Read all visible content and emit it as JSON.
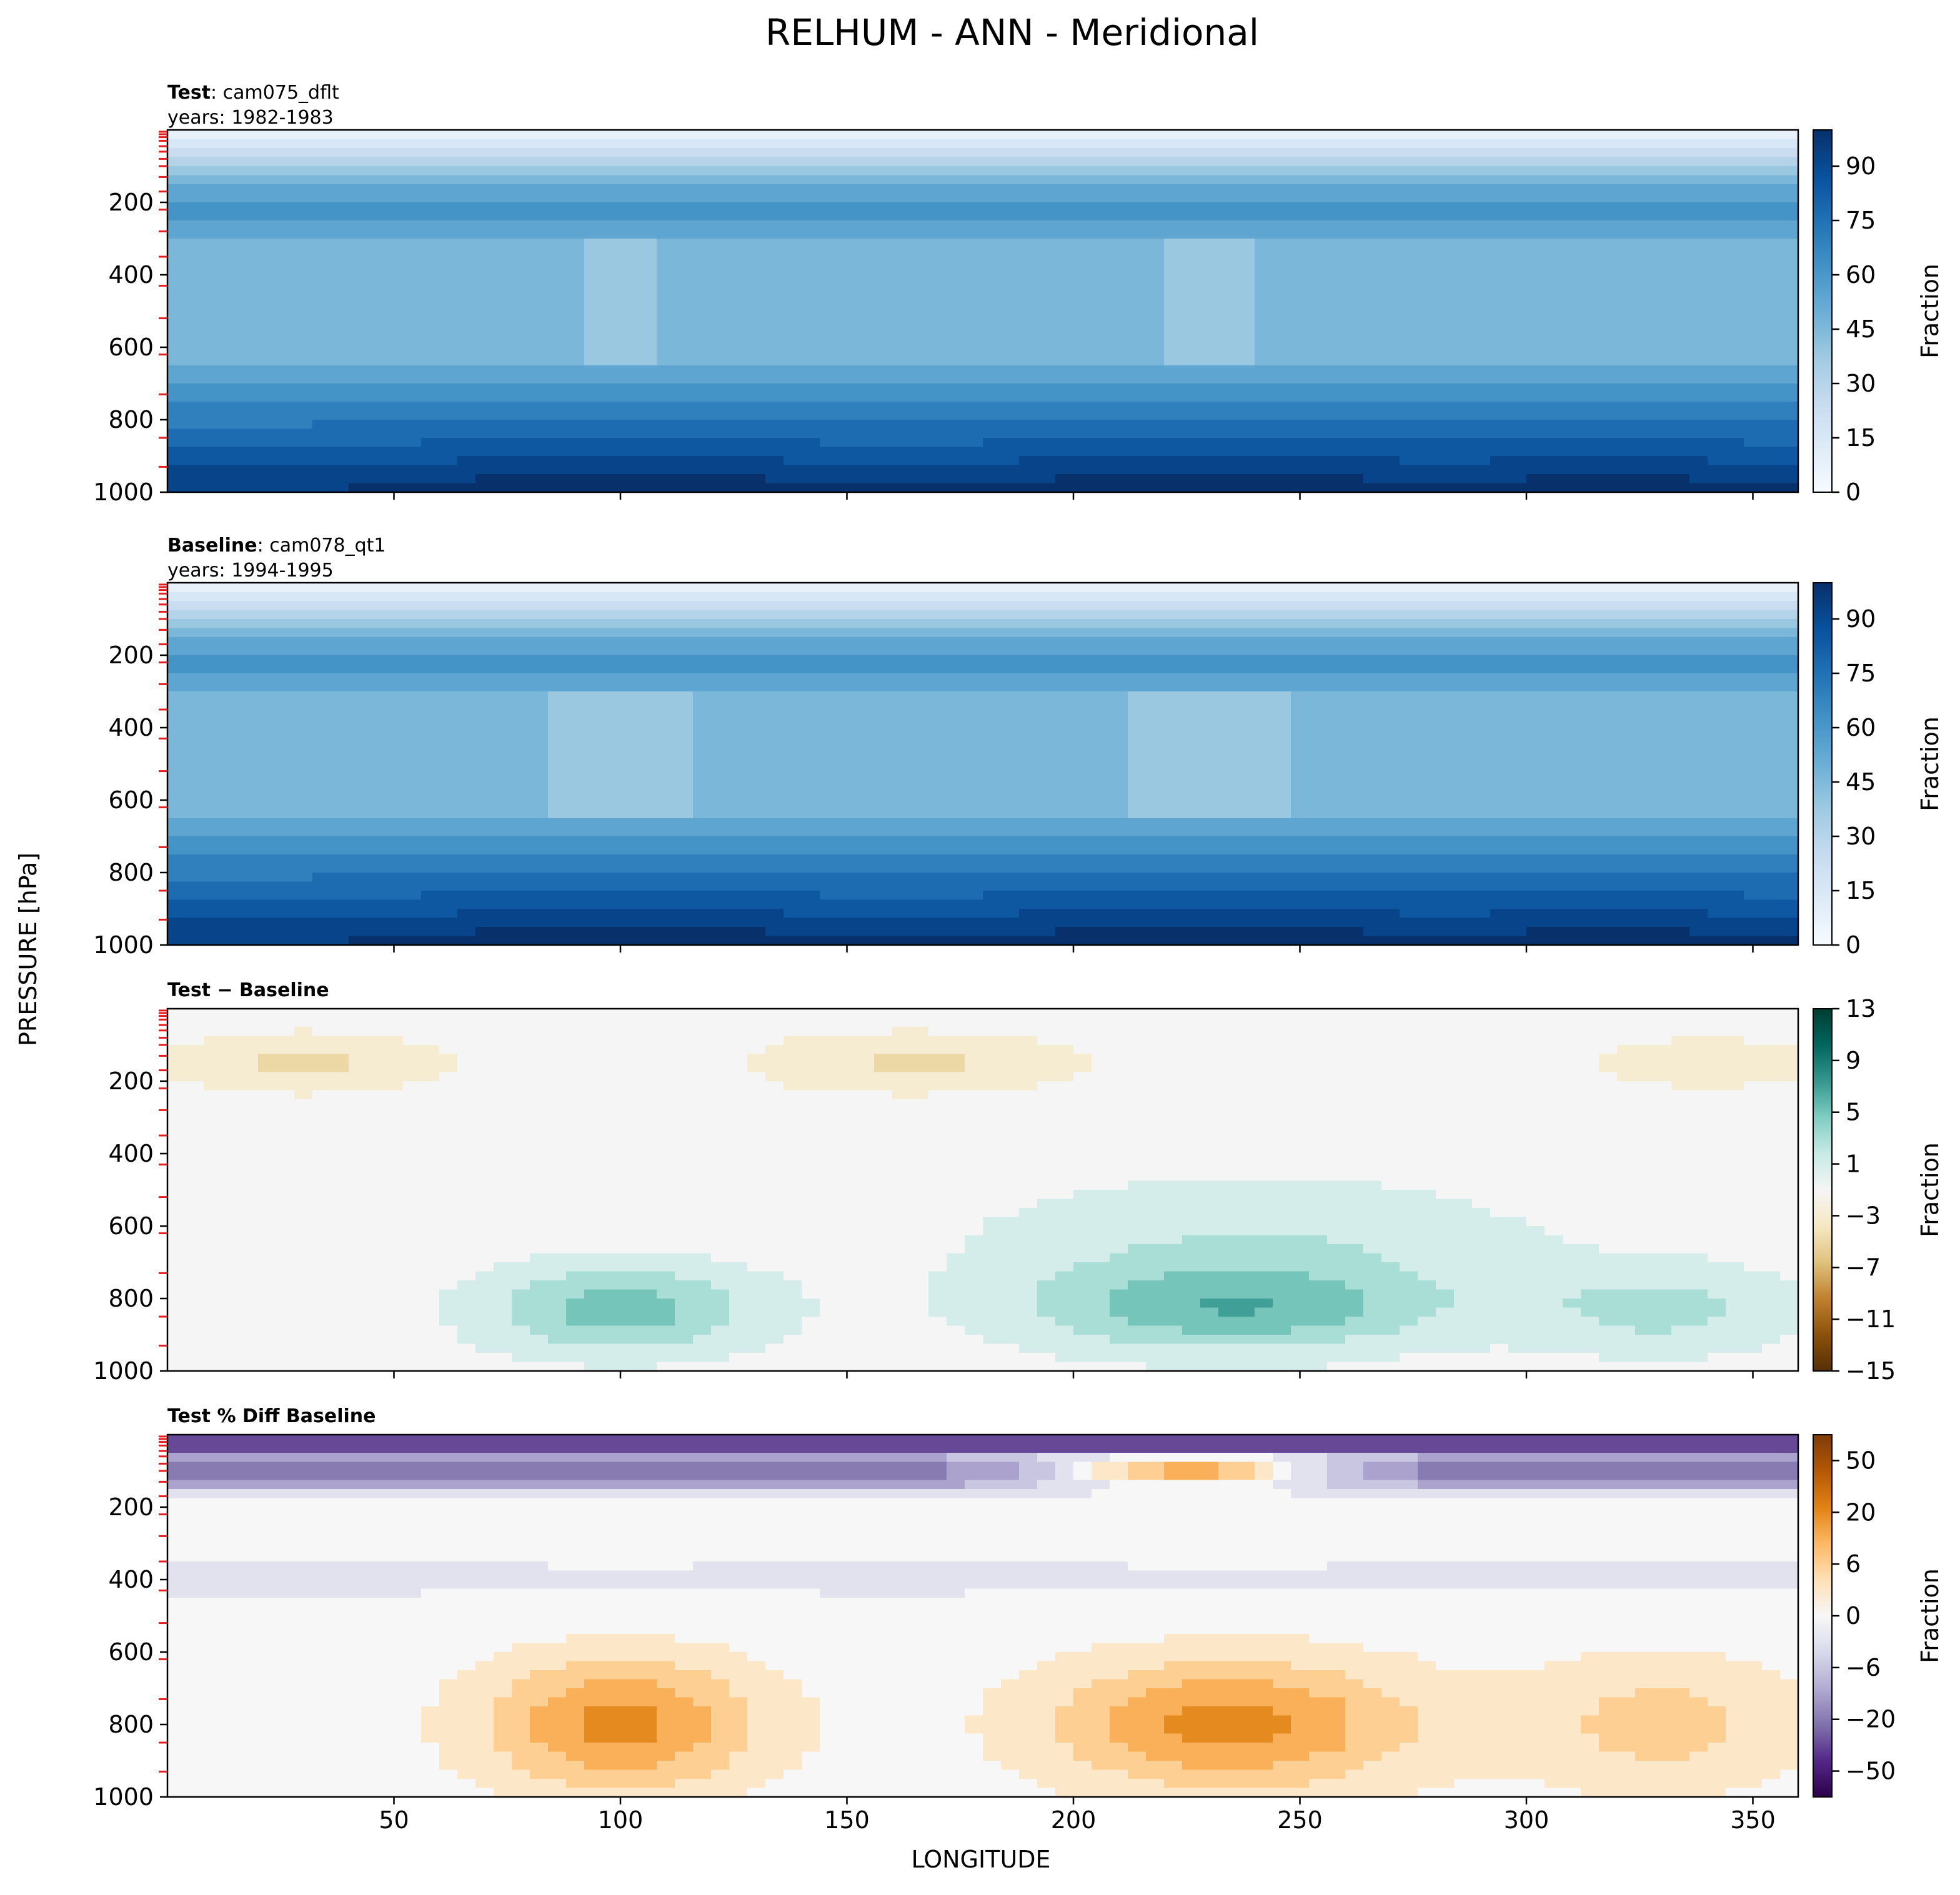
{
  "figure": {
    "title": "RELHUM - ANN - Meridional",
    "xlabel": "LONGITUDE",
    "ylabel": "PRESSURE [hPa]"
  },
  "chart_data": [
    {
      "type": "heatmap",
      "panel": "test",
      "label_bold": "Test",
      "label_rest": ": cam075_dflt",
      "years": "years: 1982-1983",
      "colormap": "Blues",
      "colorbar_label": "Fraction",
      "colorbar_ticks": [
        "0",
        "15",
        "30",
        "45",
        "60",
        "75",
        "90"
      ],
      "colorbar_range": [
        0,
        100
      ],
      "x_ticks": [
        50,
        100,
        150,
        200,
        250,
        300,
        350
      ],
      "y_ticks": [
        200,
        400,
        600,
        800,
        1000
      ],
      "xlim": [
        0,
        360
      ],
      "ylim": [
        1000,
        0
      ],
      "description_values": {
        "upper_levels_0_100hPa": "0-30",
        "mid_levels_300_600hPa": "45-60",
        "lower_levels_900_1000hPa": "75-90"
      }
    },
    {
      "type": "heatmap",
      "panel": "baseline",
      "label_bold": "Baseline",
      "label_rest": ": cam078_qt1",
      "years": "years: 1994-1995",
      "colormap": "Blues",
      "colorbar_label": "Fraction",
      "colorbar_ticks": [
        "0",
        "15",
        "30",
        "45",
        "60",
        "75",
        "90"
      ],
      "colorbar_range": [
        0,
        100
      ],
      "x_ticks": [
        50,
        100,
        150,
        200,
        250,
        300,
        350
      ],
      "y_ticks": [
        200,
        400,
        600,
        800,
        1000
      ],
      "xlim": [
        0,
        360
      ],
      "ylim": [
        1000,
        0
      ]
    },
    {
      "type": "heatmap",
      "panel": "difference",
      "label_bold": "Test − Baseline",
      "label_rest": "",
      "years": "",
      "colormap": "BrBG",
      "colorbar_label": "Fraction",
      "colorbar_ticks": [
        "13",
        "9",
        "5",
        "1",
        "−3",
        "−7",
        "−11",
        "−15"
      ],
      "colorbar_range": [
        -15,
        13
      ],
      "x_ticks": [
        50,
        100,
        150,
        200,
        250,
        300,
        350
      ],
      "y_ticks": [
        200,
        400,
        600,
        800,
        1000
      ],
      "xlim": [
        0,
        360
      ],
      "ylim": [
        1000,
        0
      ]
    },
    {
      "type": "heatmap",
      "panel": "percent_difference",
      "label_bold": "Test % Diff Baseline",
      "label_rest": "",
      "years": "",
      "colormap": "PuOr",
      "colorbar_label": "Fraction",
      "colorbar_ticks": [
        "50",
        "20",
        "6",
        "0",
        "−6",
        "−20",
        "−50"
      ],
      "colorbar_range": [
        -100,
        100
      ],
      "x_ticks": [
        50,
        100,
        150,
        200,
        250,
        300,
        350
      ],
      "y_ticks": [
        200,
        400,
        600,
        800,
        1000
      ],
      "xlim": [
        0,
        360
      ],
      "ylim": [
        1000,
        0
      ]
    }
  ]
}
